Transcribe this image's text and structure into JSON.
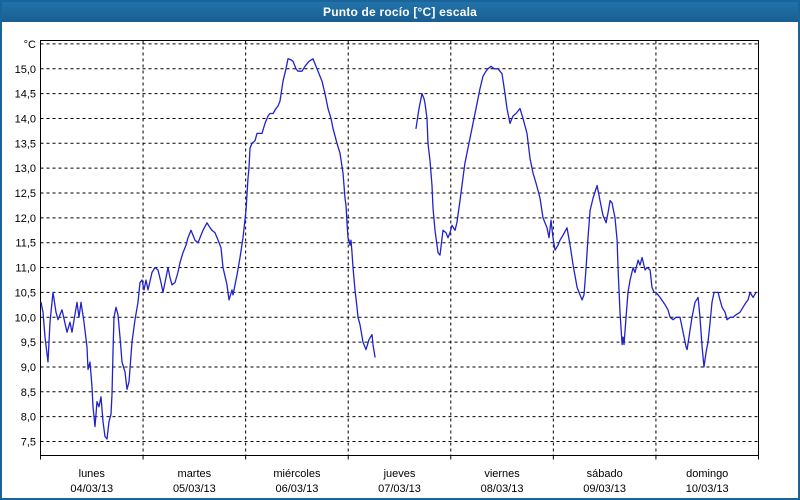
{
  "window": {
    "title": "Punto de rocío [°C] escala"
  },
  "colors": {
    "titlebar": "#1e6ca3",
    "frame": "#1a649c",
    "plot_background": "#ffffff",
    "grid": "#000000",
    "axis": "#000000",
    "text": "#000000",
    "series_line": "#2222cc"
  },
  "chart_data": {
    "type": "line",
    "title": "Punto de rocío [°C] escala",
    "ylabel": "°C",
    "xlabel": "",
    "ylim": [
      7.5,
      15.5
    ],
    "y_tick_step": 0.5,
    "y_labeled_min": 7.5,
    "y_labeled_max": 15.0,
    "decimal_separator": ",",
    "grid": "dashed",
    "legend": "none",
    "x_days": [
      {
        "name": "lunes",
        "date": "04/03/13"
      },
      {
        "name": "martes",
        "date": "05/03/13"
      },
      {
        "name": "miércoles",
        "date": "06/03/13"
      },
      {
        "name": "jueves",
        "date": "07/03/13"
      },
      {
        "name": "viernes",
        "date": "08/03/13"
      },
      {
        "name": "sábado",
        "date": "09/03/13"
      },
      {
        "name": "domingo",
        "date": "10/03/13"
      }
    ],
    "series": [
      {
        "name": "Punto de rocío [°C]",
        "color": "#2222cc",
        "x_unit": "days_since_2013-03-04",
        "segments": [
          [
            [
              0.005,
              10.3
            ],
            [
              0.024,
              10.1
            ],
            [
              0.044,
              9.6
            ],
            [
              0.073,
              9.1
            ],
            [
              0.093,
              9.9
            ],
            [
              0.122,
              10.5
            ],
            [
              0.151,
              10.1
            ],
            [
              0.171,
              9.95
            ],
            [
              0.21,
              10.15
            ],
            [
              0.258,
              9.7
            ],
            [
              0.288,
              9.9
            ],
            [
              0.307,
              9.7
            ],
            [
              0.356,
              10.3
            ],
            [
              0.375,
              10.0
            ],
            [
              0.395,
              10.3
            ],
            [
              0.424,
              9.9
            ],
            [
              0.453,
              9.4
            ],
            [
              0.463,
              8.95
            ],
            [
              0.483,
              9.1
            ],
            [
              0.502,
              8.6
            ],
            [
              0.512,
              8.2
            ],
            [
              0.531,
              7.8
            ],
            [
              0.551,
              8.3
            ],
            [
              0.57,
              8.2
            ],
            [
              0.59,
              8.4
            ],
            [
              0.609,
              7.9
            ],
            [
              0.629,
              7.6
            ],
            [
              0.648,
              7.55
            ],
            [
              0.668,
              7.9
            ],
            [
              0.687,
              8.05
            ],
            [
              0.697,
              8.45
            ],
            [
              0.707,
              9.3
            ],
            [
              0.717,
              10.0
            ],
            [
              0.736,
              10.2
            ],
            [
              0.756,
              10.05
            ],
            [
              0.775,
              9.6
            ],
            [
              0.795,
              9.1
            ],
            [
              0.824,
              8.9
            ],
            [
              0.843,
              8.55
            ],
            [
              0.863,
              8.7
            ],
            [
              0.892,
              9.5
            ],
            [
              0.921,
              9.95
            ],
            [
              0.951,
              10.3
            ],
            [
              0.97,
              10.7
            ],
            [
              0.99,
              10.75
            ],
            [
              1.009,
              10.55
            ],
            [
              1.029,
              10.75
            ],
            [
              1.048,
              10.55
            ],
            [
              1.087,
              10.9
            ],
            [
              1.116,
              11.0
            ],
            [
              1.146,
              10.95
            ],
            [
              1.175,
              10.7
            ],
            [
              1.194,
              10.5
            ],
            [
              1.224,
              10.8
            ],
            [
              1.243,
              11.0
            ],
            [
              1.263,
              10.8
            ],
            [
              1.282,
              10.65
            ],
            [
              1.311,
              10.7
            ],
            [
              1.34,
              10.9
            ],
            [
              1.36,
              11.1
            ],
            [
              1.389,
              11.3
            ],
            [
              1.419,
              11.45
            ],
            [
              1.438,
              11.6
            ],
            [
              1.467,
              11.75
            ],
            [
              1.487,
              11.65
            ],
            [
              1.506,
              11.55
            ],
            [
              1.536,
              11.5
            ],
            [
              1.555,
              11.6
            ],
            [
              1.584,
              11.75
            ],
            [
              1.623,
              11.9
            ],
            [
              1.653,
              11.8
            ],
            [
              1.672,
              11.75
            ],
            [
              1.701,
              11.7
            ],
            [
              1.731,
              11.55
            ],
            [
              1.76,
              11.4
            ],
            [
              1.779,
              11.0
            ],
            [
              1.818,
              10.65
            ],
            [
              1.838,
              10.35
            ],
            [
              1.867,
              10.55
            ],
            [
              1.877,
              10.45
            ],
            [
              1.916,
              10.85
            ],
            [
              1.945,
              11.2
            ],
            [
              1.974,
              11.6
            ],
            [
              2.003,
              12.15
            ],
            [
              2.023,
              12.8
            ],
            [
              2.033,
              13.0
            ],
            [
              2.042,
              13.4
            ],
            [
              2.062,
              13.5
            ],
            [
              2.091,
              13.55
            ],
            [
              2.111,
              13.7
            ],
            [
              2.159,
              13.7
            ],
            [
              2.189,
              13.9
            ],
            [
              2.218,
              14.05
            ],
            [
              2.237,
              14.1
            ],
            [
              2.267,
              14.1
            ],
            [
              2.296,
              14.2
            ],
            [
              2.315,
              14.25
            ],
            [
              2.335,
              14.35
            ],
            [
              2.364,
              14.75
            ],
            [
              2.393,
              15.0
            ],
            [
              2.413,
              15.2
            ],
            [
              2.442,
              15.18
            ],
            [
              2.462,
              15.15
            ],
            [
              2.491,
              15.0
            ],
            [
              2.51,
              14.95
            ],
            [
              2.549,
              14.95
            ],
            [
              2.579,
              15.05
            ],
            [
              2.618,
              15.15
            ],
            [
              2.657,
              15.2
            ],
            [
              2.686,
              15.05
            ],
            [
              2.705,
              14.95
            ],
            [
              2.744,
              14.75
            ],
            [
              2.774,
              14.5
            ],
            [
              2.803,
              14.2
            ],
            [
              2.832,
              14.0
            ],
            [
              2.852,
              13.8
            ],
            [
              2.891,
              13.5
            ],
            [
              2.92,
              13.3
            ],
            [
              2.949,
              12.9
            ],
            [
              2.969,
              12.4
            ],
            [
              2.978,
              12.25
            ],
            [
              2.988,
              11.9
            ],
            [
              2.998,
              11.6
            ],
            [
              3.008,
              11.55
            ],
            [
              3.017,
              11.45
            ],
            [
              3.027,
              11.55
            ],
            [
              3.037,
              11.3
            ],
            [
              3.047,
              11.0
            ],
            [
              3.066,
              10.55
            ],
            [
              3.086,
              10.2
            ],
            [
              3.095,
              10.0
            ],
            [
              3.115,
              9.85
            ],
            [
              3.144,
              9.5
            ],
            [
              3.173,
              9.35
            ],
            [
              3.203,
              9.55
            ],
            [
              3.232,
              9.65
            ],
            [
              3.242,
              9.45
            ],
            [
              3.261,
              9.2
            ]
          ],
          [
            [
              3.661,
              13.8
            ],
            [
              3.69,
              14.2
            ],
            [
              3.719,
              14.5
            ],
            [
              3.739,
              14.4
            ],
            [
              3.749,
              14.3
            ],
            [
              3.768,
              14.0
            ],
            [
              3.778,
              13.5
            ],
            [
              3.797,
              13.15
            ],
            [
              3.817,
              12.65
            ],
            [
              3.827,
              12.2
            ],
            [
              3.846,
              11.75
            ],
            [
              3.866,
              11.45
            ],
            [
              3.875,
              11.3
            ],
            [
              3.895,
              11.25
            ],
            [
              3.924,
              11.75
            ],
            [
              3.953,
              11.7
            ],
            [
              3.973,
              11.6
            ],
            [
              3.992,
              11.7
            ],
            [
              4.012,
              11.85
            ],
            [
              4.041,
              11.75
            ],
            [
              4.06,
              11.9
            ],
            [
              4.09,
              12.35
            ],
            [
              4.138,
              13.1
            ],
            [
              4.187,
              13.6
            ],
            [
              4.236,
              14.1
            ],
            [
              4.285,
              14.6
            ],
            [
              4.314,
              14.85
            ],
            [
              4.343,
              14.95
            ],
            [
              4.363,
              15.0
            ],
            [
              4.392,
              15.05
            ],
            [
              4.421,
              15.0
            ],
            [
              4.46,
              15.0
            ],
            [
              4.499,
              14.9
            ],
            [
              4.529,
              14.5
            ],
            [
              4.548,
              14.2
            ],
            [
              4.577,
              13.9
            ],
            [
              4.607,
              14.05
            ],
            [
              4.636,
              14.1
            ],
            [
              4.675,
              14.2
            ],
            [
              4.704,
              14.0
            ],
            [
              4.743,
              13.7
            ],
            [
              4.772,
              13.2
            ],
            [
              4.802,
              12.9
            ],
            [
              4.831,
              12.7
            ],
            [
              4.85,
              12.55
            ],
            [
              4.87,
              12.4
            ],
            [
              4.899,
              12.0
            ],
            [
              4.938,
              11.8
            ],
            [
              4.958,
              11.6
            ],
            [
              4.977,
              11.95
            ],
            [
              4.997,
              11.6
            ],
            [
              5.016,
              11.35
            ],
            [
              5.045,
              11.45
            ],
            [
              5.065,
              11.55
            ],
            [
              5.094,
              11.65
            ],
            [
              5.133,
              11.8
            ],
            [
              5.163,
              11.45
            ],
            [
              5.192,
              11.05
            ],
            [
              5.231,
              10.6
            ],
            [
              5.26,
              10.45
            ],
            [
              5.28,
              10.35
            ],
            [
              5.299,
              10.45
            ],
            [
              5.319,
              11.0
            ],
            [
              5.338,
              11.6
            ],
            [
              5.358,
              12.15
            ],
            [
              5.387,
              12.4
            ],
            [
              5.426,
              12.65
            ],
            [
              5.455,
              12.35
            ],
            [
              5.484,
              12.05
            ],
            [
              5.514,
              11.9
            ],
            [
              5.533,
              12.1
            ],
            [
              5.553,
              12.35
            ],
            [
              5.572,
              12.3
            ],
            [
              5.601,
              12.0
            ],
            [
              5.621,
              11.55
            ],
            [
              5.631,
              10.95
            ],
            [
              5.65,
              10.1
            ],
            [
              5.67,
              9.45
            ],
            [
              5.679,
              9.6
            ],
            [
              5.689,
              9.45
            ],
            [
              5.718,
              10.25
            ],
            [
              5.728,
              10.5
            ],
            [
              5.748,
              10.75
            ],
            [
              5.777,
              11.0
            ],
            [
              5.796,
              10.9
            ],
            [
              5.826,
              11.15
            ],
            [
              5.845,
              11.05
            ],
            [
              5.865,
              11.2
            ],
            [
              5.894,
              10.95
            ],
            [
              5.913,
              11.0
            ],
            [
              5.943,
              10.95
            ],
            [
              5.962,
              10.6
            ],
            [
              5.982,
              10.5
            ],
            [
              6.001,
              10.5
            ],
            [
              6.021,
              10.45
            ],
            [
              6.04,
              10.4
            ],
            [
              6.089,
              10.25
            ],
            [
              6.118,
              10.15
            ],
            [
              6.138,
              10.0
            ],
            [
              6.167,
              9.95
            ],
            [
              6.196,
              10.0
            ],
            [
              6.235,
              10.0
            ],
            [
              6.265,
              9.7
            ],
            [
              6.294,
              9.4
            ],
            [
              6.304,
              9.35
            ],
            [
              6.333,
              9.75
            ],
            [
              6.352,
              10.0
            ],
            [
              6.381,
              10.3
            ],
            [
              6.411,
              10.4
            ],
            [
              6.43,
              10.0
            ],
            [
              6.45,
              9.4
            ],
            [
              6.469,
              9.0
            ],
            [
              6.489,
              9.3
            ],
            [
              6.508,
              9.5
            ],
            [
              6.528,
              9.9
            ],
            [
              6.547,
              10.3
            ],
            [
              6.567,
              10.5
            ],
            [
              6.606,
              10.5
            ],
            [
              6.625,
              10.35
            ],
            [
              6.645,
              10.2
            ],
            [
              6.674,
              10.1
            ],
            [
              6.693,
              9.95
            ],
            [
              6.723,
              10.0
            ],
            [
              6.752,
              10.0
            ],
            [
              6.781,
              10.05
            ],
            [
              6.82,
              10.1
            ],
            [
              6.849,
              10.2
            ],
            [
              6.879,
              10.3
            ],
            [
              6.898,
              10.35
            ],
            [
              6.918,
              10.5
            ],
            [
              6.947,
              10.4
            ],
            [
              6.976,
              10.5
            ]
          ]
        ]
      }
    ]
  }
}
